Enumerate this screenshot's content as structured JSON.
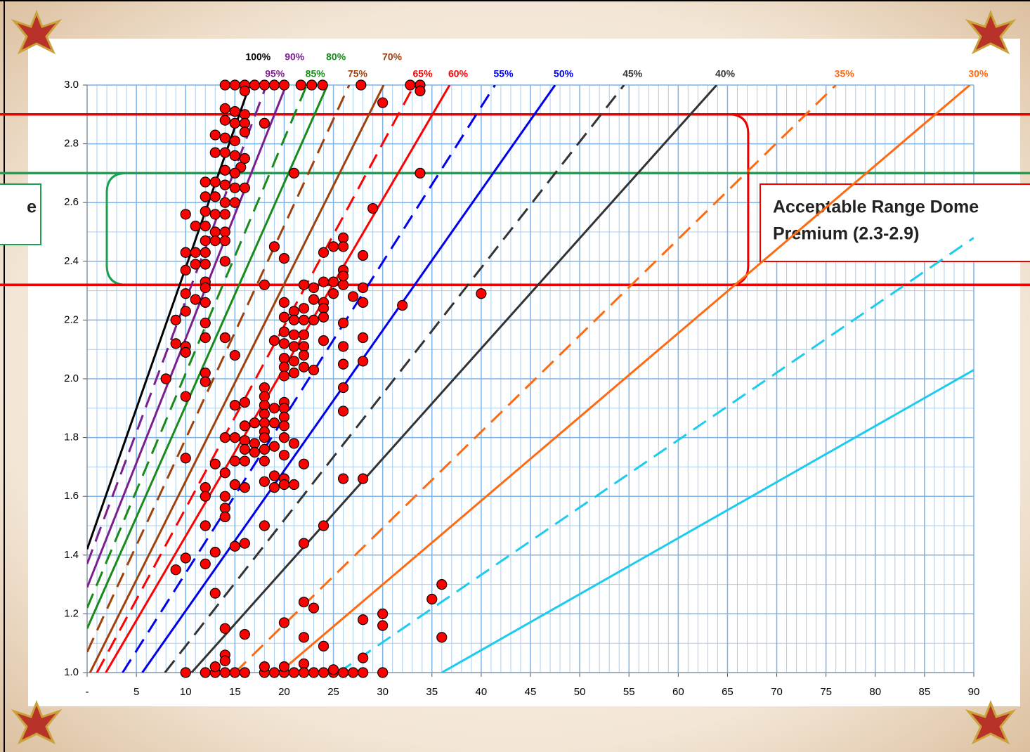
{
  "chart_data": {
    "type": "line",
    "xlim": [
      0,
      90
    ],
    "ylim": [
      1,
      3
    ],
    "xticks": [
      {
        "value": 0,
        "label": "-"
      },
      5,
      10,
      15,
      20,
      25,
      30,
      35,
      40,
      45,
      50,
      55,
      60,
      65,
      70,
      75,
      80,
      85,
      90
    ],
    "yticks": [
      {
        "value": 1,
        "label": "1.0"
      },
      1.2,
      1.4,
      1.6,
      1.8,
      {
        "value": 2,
        "label": "2.0"
      },
      2.2,
      2.4,
      2.6,
      2.8,
      {
        "value": 3,
        "label": "3.0"
      }
    ],
    "grid": true,
    "minor_grid": {
      "x": 1,
      "y": 0.1
    },
    "series": [
      {
        "name": "100%",
        "color": "#000000",
        "dash": false,
        "x": [
          0,
          16.5
        ],
        "values": [
          1.42,
          3.0
        ]
      },
      {
        "name": "95%",
        "color": "#7b1f8f",
        "dash": true,
        "x": [
          0,
          18.2
        ],
        "values": [
          1.37,
          3.0
        ]
      },
      {
        "name": "90%",
        "color": "#7b1f8f",
        "dash": false,
        "x": [
          0,
          20.2
        ],
        "values": [
          1.29,
          3.0
        ]
      },
      {
        "name": "85%",
        "color": "#1a8a1a",
        "dash": true,
        "x": [
          0,
          22.3
        ],
        "values": [
          1.22,
          3.0
        ]
      },
      {
        "name": "80%",
        "color": "#1a8a1a",
        "dash": false,
        "x": [
          0,
          24.4
        ],
        "values": [
          1.15,
          3.0
        ]
      },
      {
        "name": "75%",
        "color": "#a0400c",
        "dash": true,
        "x": [
          0,
          26.6
        ],
        "values": [
          1.07,
          3.0
        ]
      },
      {
        "name": "70%",
        "color": "#a0400c",
        "dash": false,
        "x": [
          0.3,
          30.1
        ],
        "values": [
          1.0,
          3.0
        ]
      },
      {
        "name": "65%",
        "color": "#ff0000",
        "dash": true,
        "x": [
          1.0,
          33.2
        ],
        "values": [
          1.0,
          3.0
        ]
      },
      {
        "name": "60%",
        "color": "#ff0000",
        "dash": false,
        "x": [
          1.9,
          36.8
        ],
        "values": [
          1.0,
          3.0
        ]
      },
      {
        "name": "55%",
        "color": "#0000ee",
        "dash": true,
        "x": [
          3.6,
          41.4
        ],
        "values": [
          1.0,
          3.0
        ]
      },
      {
        "name": "50%",
        "color": "#0000ee",
        "dash": false,
        "x": [
          5.6,
          47.5
        ],
        "values": [
          1.0,
          3.0
        ]
      },
      {
        "name": "45%",
        "color": "#333333",
        "dash": true,
        "x": [
          7.9,
          54.5
        ],
        "values": [
          1.0,
          3.0
        ]
      },
      {
        "name": "40%",
        "color": "#333333",
        "dash": false,
        "x": [
          10.6,
          63.9
        ],
        "values": [
          1.0,
          3.0
        ]
      },
      {
        "name": "35%",
        "color": "#ff6a10",
        "dash": true,
        "x": [
          15.0,
          76.0
        ],
        "values": [
          1.0,
          3.0
        ]
      },
      {
        "name": "30%",
        "color": "#ff6a10",
        "dash": false,
        "x": [
          19.5,
          89.6
        ],
        "values": [
          1.0,
          3.0
        ]
      },
      {
        "color": "#1ccbee",
        "dash": true,
        "x": [
          25.5,
          90
        ],
        "values": [
          1.0,
          2.48
        ]
      },
      {
        "color": "#1ccbee",
        "dash": false,
        "x": [
          36.0,
          90
        ],
        "values": [
          1.0,
          2.03
        ]
      },
      {
        "type": "scatter",
        "color": "#ff0000",
        "x": [
          14,
          15,
          16,
          17,
          18,
          19,
          20,
          21.7,
          22.8,
          23.9,
          27.8,
          32.8,
          33.8,
          33.8,
          30,
          16,
          14,
          15,
          16,
          14,
          15,
          16,
          18,
          13,
          14,
          15,
          16,
          13,
          14,
          15,
          16,
          15.6,
          14,
          15,
          21,
          33.8,
          12,
          13,
          14,
          15,
          16,
          12,
          13,
          14,
          15,
          12,
          13,
          14,
          10,
          11,
          12,
          13,
          14,
          12,
          13,
          14,
          29,
          26,
          25,
          26,
          24,
          19,
          20,
          28,
          10,
          11,
          12,
          12,
          11,
          14,
          10,
          12,
          12,
          10,
          11,
          12,
          18,
          22,
          23,
          24,
          25,
          26,
          28,
          26,
          26,
          40,
          32,
          20,
          21,
          22,
          23,
          24,
          25,
          24,
          28,
          27,
          20,
          21,
          22,
          23,
          24,
          26,
          10,
          9,
          12,
          20,
          21,
          22,
          21,
          22,
          20,
          19,
          24,
          26,
          28,
          12,
          14,
          9,
          10,
          10,
          20,
          21,
          22,
          20,
          22,
          20,
          21,
          23,
          26,
          28,
          15,
          12,
          12,
          8,
          10,
          18,
          18,
          18,
          18,
          19,
          20,
          20,
          20,
          16,
          15,
          26,
          26,
          18,
          19,
          17,
          16,
          18,
          20,
          15,
          16,
          17,
          18,
          14,
          20,
          21,
          16,
          17,
          18,
          19,
          20,
          10,
          15,
          16,
          18,
          22,
          13,
          14,
          19,
          18,
          20,
          21,
          26,
          28,
          12,
          15,
          16,
          19,
          20,
          12,
          14,
          14,
          12,
          14,
          18,
          24,
          15,
          16,
          22,
          13,
          10,
          12,
          9,
          13,
          36,
          35,
          22,
          23,
          28,
          30,
          30,
          20,
          14,
          16,
          22,
          36,
          24,
          14,
          14,
          28,
          22,
          10,
          12,
          13,
          14,
          15,
          16,
          18,
          19,
          20,
          21,
          22,
          23,
          24,
          25,
          26,
          27,
          28,
          30,
          18,
          20,
          13,
          25
        ],
        "values": [
          3.0,
          3.0,
          3.0,
          3.0,
          3.0,
          3.0,
          3.0,
          3.0,
          3.0,
          3.0,
          3.0,
          3.0,
          3.0,
          2.98,
          2.94,
          2.98,
          2.92,
          2.91,
          2.9,
          2.88,
          2.87,
          2.87,
          2.87,
          2.83,
          2.82,
          2.81,
          2.84,
          2.77,
          2.77,
          2.76,
          2.75,
          2.72,
          2.71,
          2.7,
          2.7,
          2.7,
          2.67,
          2.67,
          2.66,
          2.65,
          2.65,
          2.62,
          2.62,
          2.6,
          2.6,
          2.57,
          2.56,
          2.56,
          2.56,
          2.52,
          2.52,
          2.5,
          2.5,
          2.47,
          2.47,
          2.47,
          2.58,
          2.48,
          2.45,
          2.45,
          2.43,
          2.45,
          2.41,
          2.42,
          2.43,
          2.43,
          2.43,
          2.39,
          2.39,
          2.4,
          2.37,
          2.33,
          2.31,
          2.29,
          2.27,
          2.26,
          2.32,
          2.32,
          2.31,
          2.33,
          2.33,
          2.32,
          2.31,
          2.37,
          2.35,
          2.29,
          2.25,
          2.26,
          2.23,
          2.24,
          2.27,
          2.26,
          2.29,
          2.24,
          2.26,
          2.28,
          2.21,
          2.2,
          2.2,
          2.2,
          2.21,
          2.19,
          2.23,
          2.2,
          2.19,
          2.16,
          2.15,
          2.15,
          2.11,
          2.11,
          2.12,
          2.13,
          2.13,
          2.11,
          2.14,
          2.14,
          2.14,
          2.12,
          2.11,
          2.09,
          2.07,
          2.06,
          2.08,
          2.04,
          2.04,
          2.01,
          2.02,
          2.03,
          2.05,
          2.06,
          2.08,
          2.02,
          1.99,
          2.0,
          1.94,
          1.97,
          1.94,
          1.91,
          1.88,
          1.9,
          1.92,
          1.9,
          1.87,
          1.92,
          1.91,
          1.97,
          1.89,
          1.85,
          1.85,
          1.85,
          1.84,
          1.82,
          1.84,
          1.8,
          1.79,
          1.78,
          1.8,
          1.8,
          1.8,
          1.78,
          1.76,
          1.75,
          1.76,
          1.77,
          1.74,
          1.73,
          1.72,
          1.72,
          1.72,
          1.71,
          1.71,
          1.68,
          1.67,
          1.65,
          1.66,
          1.64,
          1.66,
          1.66,
          1.63,
          1.64,
          1.63,
          1.63,
          1.64,
          1.6,
          1.6,
          1.56,
          1.5,
          1.53,
          1.5,
          1.5,
          1.43,
          1.44,
          1.44,
          1.41,
          1.39,
          1.37,
          1.35,
          1.27,
          1.3,
          1.25,
          1.24,
          1.22,
          1.18,
          1.2,
          1.16,
          1.17,
          1.15,
          1.13,
          1.12,
          1.12,
          1.09,
          1.06,
          1.04,
          1.05,
          1.03,
          1.0,
          1.0,
          1.0,
          1.0,
          1.0,
          1.0,
          1.0,
          1.0,
          1.0,
          1.0,
          1.0,
          1.0,
          1.0,
          1.0,
          1.0,
          1.0,
          1.0,
          1.0,
          1.02,
          1.02,
          1.02,
          1.01
        ]
      }
    ],
    "bands": [
      {
        "color": "#1aa050",
        "ylim": [
          2.32,
          2.7
        ],
        "label": [
          "e"
        ]
      },
      {
        "color": "#ee0000",
        "ylim": [
          2.32,
          2.9
        ],
        "label": [
          "Acceptable Range Dome",
          "Premium (2.3-2.9)"
        ]
      }
    ]
  }
}
